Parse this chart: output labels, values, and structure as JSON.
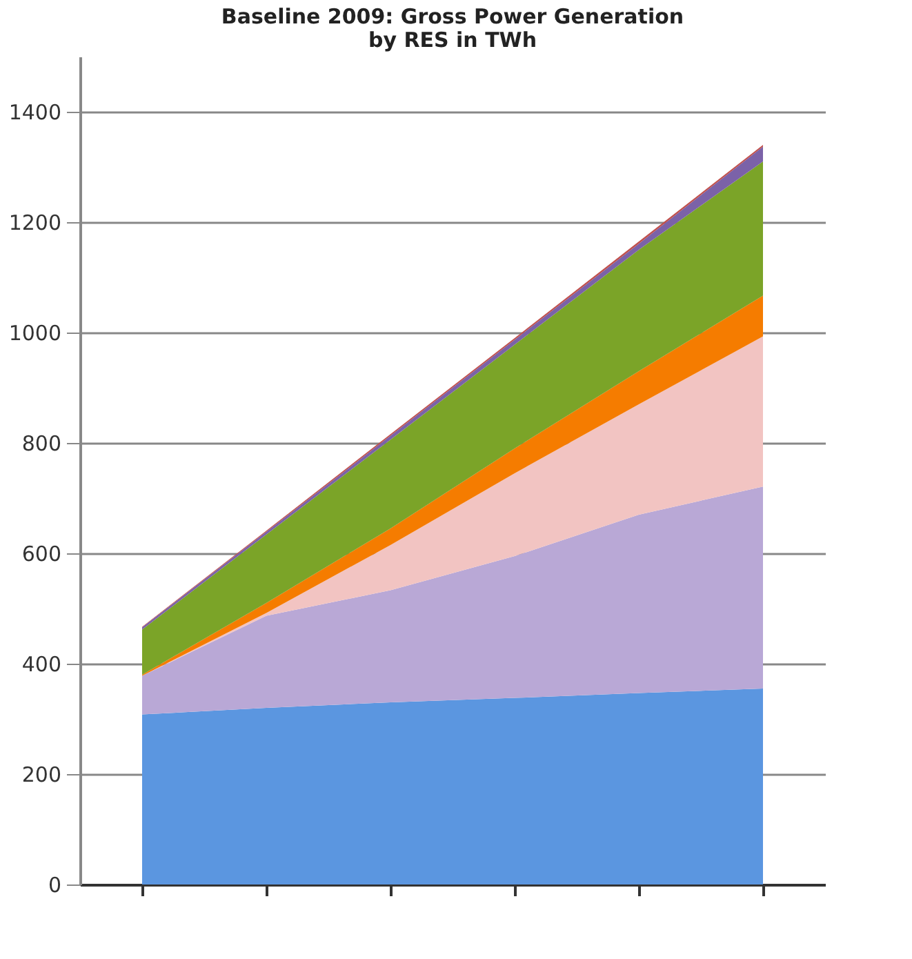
{
  "chart_data": {
    "type": "area",
    "stacked": true,
    "title": [
      "Baseline 2009: Gross Power Generation",
      "by RES in TWh"
    ],
    "categories": [
      null,
      null,
      null,
      null,
      null,
      null
    ],
    "series": [
      {
        "color": "#5b96e0",
        "values": [
          308,
          320,
          330,
          338,
          347,
          355
        ]
      },
      {
        "color": "#b9a8d6",
        "values": [
          70,
          167,
          203,
          257,
          323,
          366
        ]
      },
      {
        "color": "#f2c4c2",
        "values": [
          0,
          5,
          82,
          150,
          200,
          272
        ]
      },
      {
        "color": "#f57c00",
        "values": [
          2,
          18,
          30,
          45,
          60,
          74
        ]
      },
      {
        "color": "#7ba428",
        "values": [
          82,
          124,
          161,
          188,
          220,
          243
        ]
      },
      {
        "color": "#7b62a8",
        "values": [
          4,
          5,
          7,
          9,
          11,
          27
        ]
      },
      {
        "color": "#c0504d",
        "values": [
          1,
          2,
          3,
          3,
          4,
          3
        ]
      }
    ],
    "ylim": [
      0,
      1500
    ],
    "yticks": [
      0,
      200,
      400,
      600,
      800,
      1000,
      1200,
      1400
    ],
    "grid": "y",
    "legend": false,
    "tick_labels": "y"
  }
}
